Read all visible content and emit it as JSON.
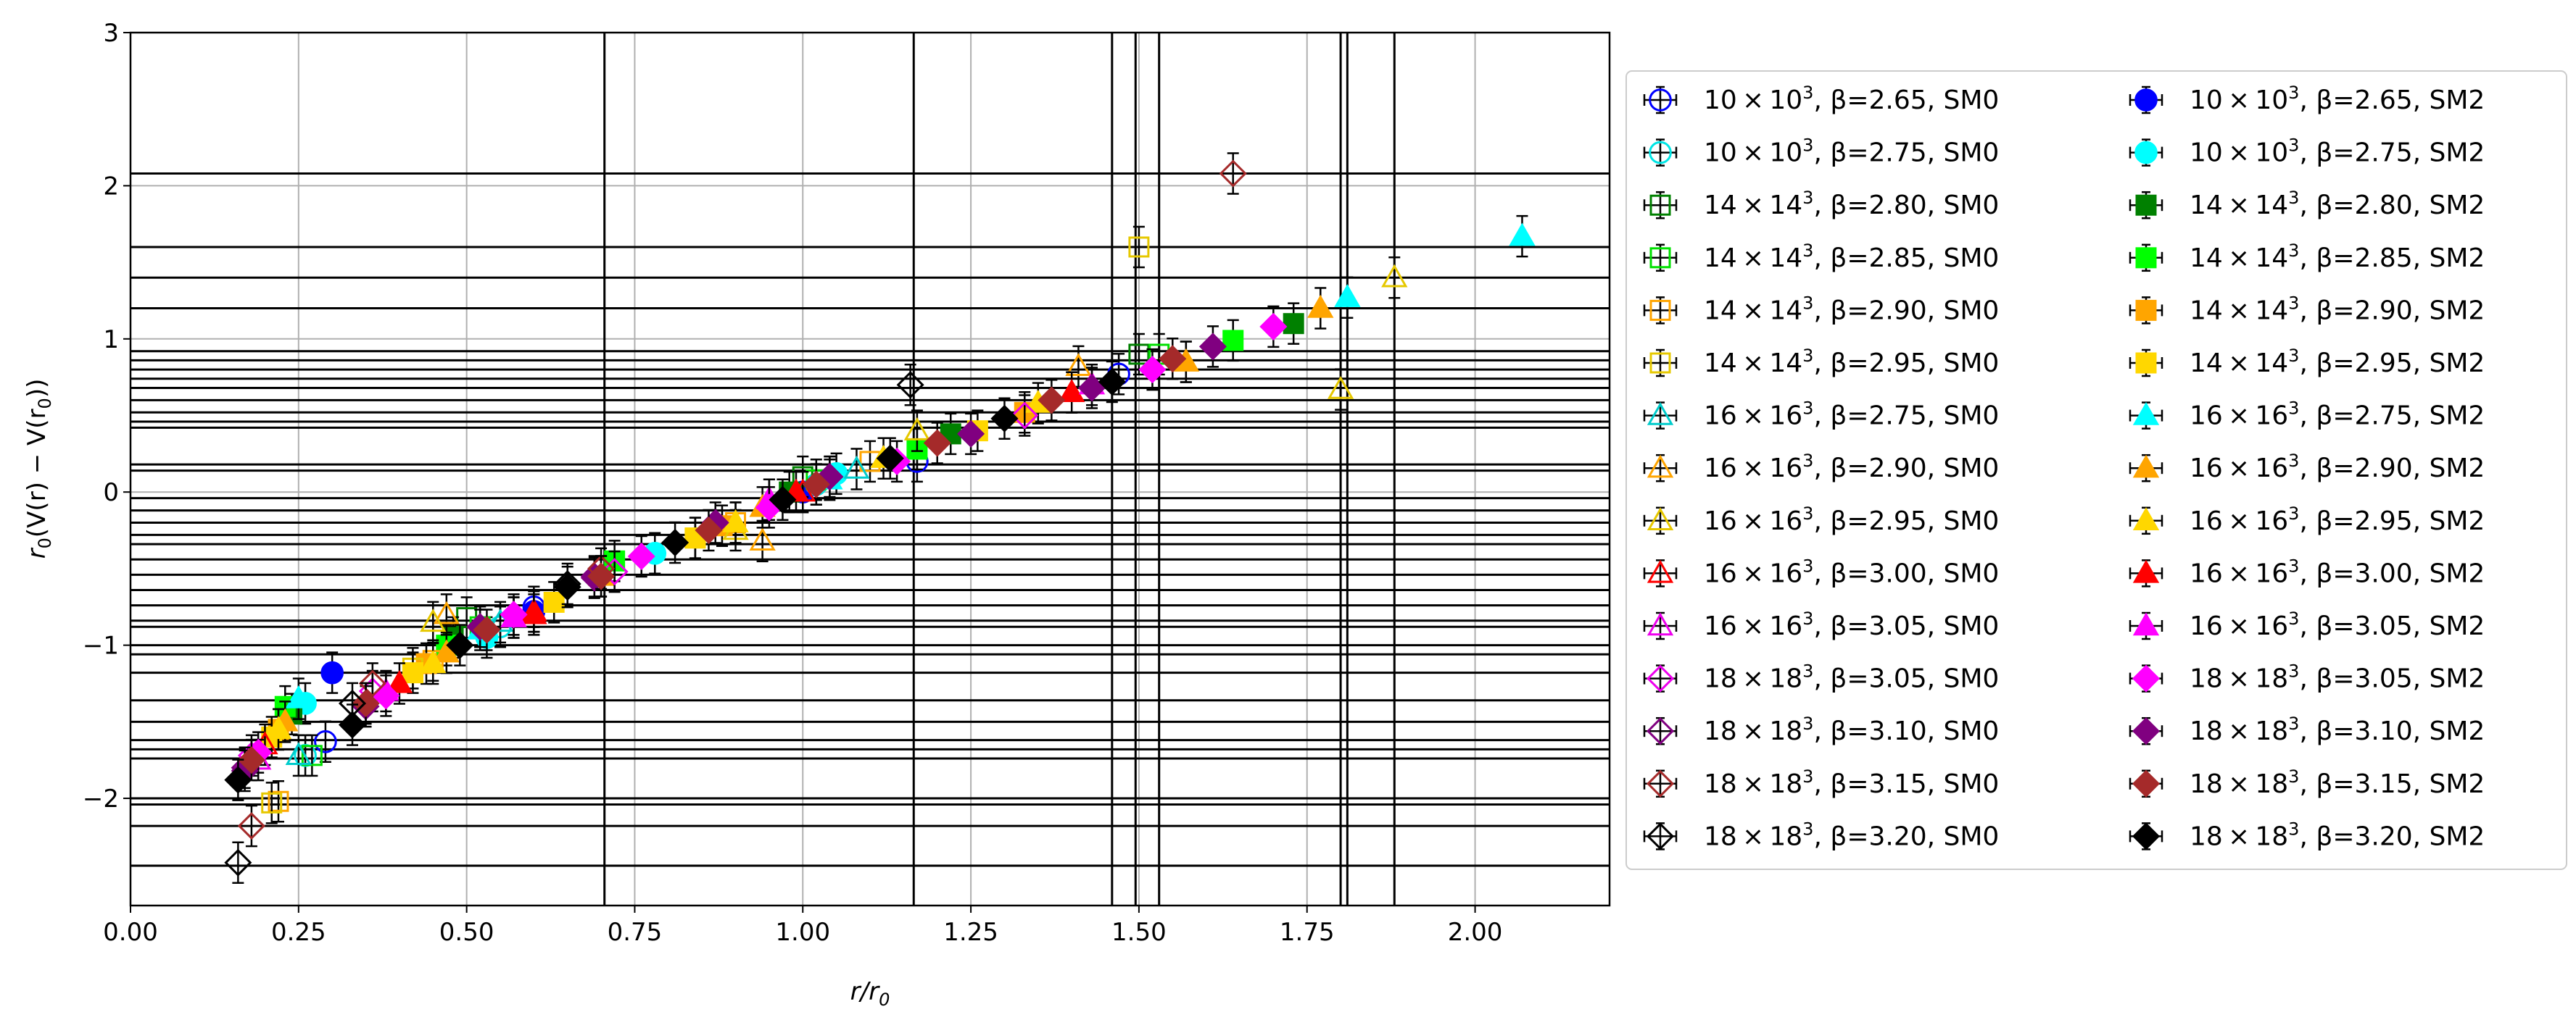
{
  "chart_data": {
    "type": "scatter",
    "xlabel": "r/r",
    "xlabel_sub": "0",
    "ylabel": {
      "a": "r",
      "b": "(V(r) − V(r",
      "c": "))",
      "sub": "0"
    },
    "xlim": [
      0,
      2.2
    ],
    "ylim": [
      -2.7,
      3
    ],
    "xticks": [
      0,
      0.25,
      0.5,
      0.75,
      1.0,
      1.25,
      1.5,
      1.75,
      2.0
    ],
    "xtick_labels": [
      "0.00",
      "0.25",
      "0.50",
      "0.75",
      "1.00",
      "1.25",
      "1.50",
      "1.75",
      "2.00"
    ],
    "yticks": [
      -2,
      -1,
      0,
      1,
      2,
      3
    ],
    "ytick_labels": [
      "−2",
      "−1",
      "0",
      "1",
      "2",
      "3"
    ],
    "grid": true,
    "legend_position": "outside-right",
    "legend_columns": 2,
    "wide_error_bars_y": [
      2.08,
      1.6,
      1.4,
      1.2,
      0.92,
      0.86,
      0.8,
      0.74,
      0.68,
      0.6,
      0.52,
      0.46,
      0.42,
      0.18,
      0.14,
      -0.04,
      -0.12,
      -0.2,
      -0.28,
      -0.34,
      -0.44,
      -0.54,
      -0.64,
      -0.74,
      -0.84,
      -0.88,
      -1.0,
      -1.06,
      -1.18,
      -1.36,
      -1.5,
      -1.62,
      -1.68,
      -1.74,
      -2.0,
      -2.04,
      -2.18,
      -2.44
    ],
    "wide_error_bars_x": [
      0.705,
      1.165,
      1.495,
      1.53,
      1.46,
      1.8,
      1.81,
      1.88
    ],
    "series": [
      {
        "name": "10×10³, β=2.65, SM0",
        "size": "10 × 10",
        "sup": "3",
        "rest": ", β=2.65, SM0",
        "color": "#0000ff",
        "marker": "circle",
        "filled": false,
        "points": [
          [
            0.29,
            -1.63
          ],
          [
            0.6,
            -0.75
          ],
          [
            1.17,
            0.2
          ],
          [
            1.47,
            0.77
          ]
        ]
      },
      {
        "name": "10×10³, β=2.65, SM2",
        "size": "10 × 10",
        "sup": "3",
        "rest": ", β=2.65, SM2",
        "color": "#0000ff",
        "marker": "circle",
        "filled": true,
        "points": [
          [
            0.3,
            -1.18
          ],
          [
            0.6,
            -0.78
          ],
          [
            1.0,
            0.0
          ]
        ]
      },
      {
        "name": "10×10³, β=2.75, SM0",
        "size": "10 × 10",
        "sup": "3",
        "rest": ", β=2.75, SM0",
        "color": "#00e5e5",
        "marker": "circle",
        "filled": false,
        "points": [
          [
            0.26,
            -1.72
          ],
          [
            0.55,
            -0.88
          ],
          [
            1.02,
            0.05
          ]
        ]
      },
      {
        "name": "10×10³, β=2.75, SM2",
        "size": "10 × 10",
        "sup": "3",
        "rest": ", β=2.75, SM2",
        "color": "#00ffff",
        "marker": "circle",
        "filled": true,
        "points": [
          [
            0.26,
            -1.38
          ],
          [
            0.53,
            -0.95
          ],
          [
            0.78,
            -0.4
          ],
          [
            1.05,
            0.12
          ]
        ]
      },
      {
        "name": "14×14³, β=2.80, SM0",
        "size": "14 × 14",
        "sup": "3",
        "rest": ", β=2.80, SM0",
        "color": "#008000",
        "marker": "square",
        "filled": false,
        "points": [
          [
            0.5,
            -0.82
          ],
          [
            1.0,
            0.1
          ],
          [
            1.5,
            0.9
          ]
        ]
      },
      {
        "name": "14×14³, β=2.80, SM2",
        "size": "14 × 14",
        "sup": "3",
        "rest": ", β=2.80, SM2",
        "color": "#008000",
        "marker": "square",
        "filled": true,
        "points": [
          [
            0.24,
            -1.45
          ],
          [
            0.48,
            -0.95
          ],
          [
            0.98,
            0.0
          ],
          [
            1.22,
            0.38
          ],
          [
            1.73,
            1.1
          ]
        ]
      },
      {
        "name": "14×14³, β=2.85, SM0",
        "size": "14 × 14",
        "sup": "3",
        "rest": ", β=2.85, SM0",
        "color": "#00e000",
        "marker": "square",
        "filled": false,
        "points": [
          [
            0.27,
            -1.72
          ],
          [
            0.52,
            -0.88
          ],
          [
            1.02,
            0.08
          ],
          [
            1.53,
            0.9
          ]
        ]
      },
      {
        "name": "14×14³, β=2.85, SM2",
        "size": "14 × 14",
        "sup": "3",
        "rest": ", β=2.85, SM2",
        "color": "#00ff00",
        "marker": "square",
        "filled": true,
        "points": [
          [
            0.23,
            -1.4
          ],
          [
            0.47,
            -1.0
          ],
          [
            0.72,
            -0.45
          ],
          [
            1.17,
            0.28
          ],
          [
            1.64,
            0.99
          ]
        ]
      },
      {
        "name": "14×14³, β=2.90, SM0",
        "size": "14 × 14",
        "sup": "3",
        "rest": ", β=2.90, SM0",
        "color": "#ffa500",
        "marker": "square",
        "filled": false,
        "points": [
          [
            0.22,
            -2.02
          ],
          [
            0.45,
            -1.1
          ],
          [
            0.9,
            -0.2
          ],
          [
            1.1,
            0.2
          ]
        ]
      },
      {
        "name": "14×14³, β=2.90, SM2",
        "size": "14 × 14",
        "sup": "3",
        "rest": ", β=2.90, SM2",
        "color": "#ffa500",
        "marker": "square",
        "filled": true,
        "points": [
          [
            0.22,
            -1.55
          ],
          [
            0.44,
            -1.12
          ],
          [
            0.88,
            -0.22
          ],
          [
            1.33,
            0.52
          ]
        ]
      },
      {
        "name": "14×14³, β=2.95, SM0",
        "size": "14 × 14",
        "sup": "3",
        "rest": ", β=2.95, SM0",
        "color": "#e6c800",
        "marker": "square",
        "filled": false,
        "points": [
          [
            0.21,
            -2.03
          ],
          [
            0.42,
            -1.15
          ],
          [
            0.84,
            -0.3
          ],
          [
            1.5,
            1.6
          ]
        ]
      },
      {
        "name": "14×14³, β=2.95, SM2",
        "size": "14 × 14",
        "sup": "3",
        "rest": ", β=2.95, SM2",
        "color": "#ffd700",
        "marker": "square",
        "filled": true,
        "points": [
          [
            0.21,
            -1.6
          ],
          [
            0.42,
            -1.18
          ],
          [
            0.63,
            -0.72
          ],
          [
            0.84,
            -0.3
          ],
          [
            1.26,
            0.4
          ]
        ]
      },
      {
        "name": "16×16³, β=2.75, SM0",
        "size": "16 × 16",
        "sup": "3",
        "rest": ", β=2.75, SM0",
        "color": "#00cccc",
        "marker": "triangle",
        "filled": false,
        "points": [
          [
            0.25,
            -1.72
          ],
          [
            0.55,
            -0.85
          ],
          [
            1.08,
            0.15
          ]
        ]
      },
      {
        "name": "16×16³, β=2.75, SM2",
        "size": "16 × 16",
        "sup": "3",
        "rest": ", β=2.75, SM2",
        "color": "#00ffff",
        "marker": "triangle",
        "filled": true,
        "points": [
          [
            0.25,
            -1.35
          ],
          [
            0.52,
            -0.9
          ],
          [
            1.04,
            0.08
          ],
          [
            1.81,
            1.27
          ],
          [
            2.07,
            1.67
          ]
        ]
      },
      {
        "name": "16×16³, β=2.90, SM0",
        "size": "16 × 16",
        "sup": "3",
        "rest": ", β=2.90, SM0",
        "color": "#ffa500",
        "marker": "triangle",
        "filled": false,
        "points": [
          [
            0.47,
            -0.8
          ],
          [
            0.94,
            -0.32
          ],
          [
            1.41,
            0.82
          ],
          [
            1.57,
            0.85
          ]
        ]
      },
      {
        "name": "16×16³, β=2.90, SM2",
        "size": "16 × 16",
        "sup": "3",
        "rest": ", β=2.90, SM2",
        "color": "#ffa500",
        "marker": "triangle",
        "filled": true,
        "points": [
          [
            0.23,
            -1.5
          ],
          [
            0.47,
            -1.05
          ],
          [
            0.7,
            -0.55
          ],
          [
            0.94,
            -0.1
          ],
          [
            1.57,
            0.85
          ],
          [
            1.77,
            1.2
          ]
        ]
      },
      {
        "name": "16×16³, β=2.95, SM0",
        "size": "16 × 16",
        "sup": "3",
        "rest": ", β=2.95, SM0",
        "color": "#e6c800",
        "marker": "triangle",
        "filled": false,
        "points": [
          [
            0.45,
            -0.85
          ],
          [
            0.9,
            -0.25
          ],
          [
            1.17,
            0.4
          ],
          [
            1.8,
            0.67
          ],
          [
            1.88,
            1.4
          ]
        ]
      },
      {
        "name": "16×16³, β=2.95, SM2",
        "size": "16 × 16",
        "sup": "3",
        "rest": ", β=2.95, SM2",
        "color": "#ffd700",
        "marker": "triangle",
        "filled": true,
        "points": [
          [
            0.22,
            -1.55
          ],
          [
            0.45,
            -1.12
          ],
          [
            0.9,
            -0.2
          ],
          [
            1.12,
            0.22
          ],
          [
            1.35,
            0.58
          ]
        ]
      },
      {
        "name": "16×16³, β=3.00, SM0",
        "size": "16 × 16",
        "sup": "3",
        "rest": ", β=3.00, SM0",
        "color": "#ff0000",
        "marker": "triangle",
        "filled": false,
        "points": [
          [
            0.2,
            -1.65
          ],
          [
            0.6,
            -0.78
          ],
          [
            1.0,
            0.0
          ]
        ]
      },
      {
        "name": "16×16³, β=3.00, SM2",
        "size": "16 × 16",
        "sup": "3",
        "rest": ", β=3.00, SM2",
        "color": "#ff0000",
        "marker": "triangle",
        "filled": true,
        "points": [
          [
            0.4,
            -1.25
          ],
          [
            0.6,
            -0.8
          ],
          [
            0.99,
            0.0
          ],
          [
            1.4,
            0.65
          ]
        ]
      },
      {
        "name": "16×16³, β=3.05, SM0",
        "size": "16 × 16",
        "sup": "3",
        "rest": ", β=3.05, SM0",
        "color": "#ee00ee",
        "marker": "triangle",
        "filled": false,
        "points": [
          [
            0.19,
            -1.75
          ],
          [
            0.57,
            -0.82
          ],
          [
            0.95,
            -0.05
          ]
        ]
      },
      {
        "name": "16×16³, β=3.05, SM2",
        "size": "16 × 16",
        "sup": "3",
        "rest": ", β=3.05, SM2",
        "color": "#ff00ff",
        "marker": "triangle",
        "filled": true,
        "points": [
          [
            0.38,
            -1.3
          ],
          [
            0.57,
            -0.82
          ],
          [
            0.95,
            -0.05
          ],
          [
            1.43,
            0.7
          ]
        ]
      },
      {
        "name": "18×18³, β=3.05, SM0",
        "size": "18 × 18",
        "sup": "3",
        "rest": ", β=3.05, SM0",
        "color": "#ee00ee",
        "marker": "diamond",
        "filled": false,
        "points": [
          [
            0.18,
            -1.72
          ],
          [
            0.36,
            -1.3
          ],
          [
            0.72,
            -0.52
          ],
          [
            1.33,
            0.5
          ]
        ]
      },
      {
        "name": "18×18³, β=3.05, SM2",
        "size": "18 × 18",
        "sup": "3",
        "rest": ", β=3.05, SM2",
        "color": "#ff00ff",
        "marker": "diamond",
        "filled": true,
        "points": [
          [
            0.19,
            -1.7
          ],
          [
            0.38,
            -1.33
          ],
          [
            0.57,
            -0.8
          ],
          [
            0.76,
            -0.42
          ],
          [
            0.95,
            -0.1
          ],
          [
            1.14,
            0.2
          ],
          [
            1.52,
            0.8
          ],
          [
            1.7,
            1.08
          ]
        ]
      },
      {
        "name": "18×18³, β=3.10, SM0",
        "size": "18 × 18",
        "sup": "3",
        "rest": ", β=3.10, SM0",
        "color": "#800080",
        "marker": "diamond",
        "filled": false,
        "points": [
          [
            0.17,
            -1.8
          ],
          [
            0.35,
            -1.38
          ],
          [
            0.69,
            -0.55
          ],
          [
            1.04,
            0.1
          ]
        ]
      },
      {
        "name": "18×18³, β=3.10, SM2",
        "size": "18 × 18",
        "sup": "3",
        "rest": ", β=3.10, SM2",
        "color": "#800080",
        "marker": "diamond",
        "filled": true,
        "points": [
          [
            0.17,
            -1.82
          ],
          [
            0.35,
            -1.4
          ],
          [
            0.52,
            -0.88
          ],
          [
            0.69,
            -0.56
          ],
          [
            0.87,
            -0.2
          ],
          [
            1.04,
            0.1
          ],
          [
            1.25,
            0.38
          ],
          [
            1.43,
            0.68
          ],
          [
            1.61,
            0.95
          ]
        ]
      },
      {
        "name": "18×18³, β=3.15, SM0",
        "size": "18 × 18",
        "sup": "3",
        "rest": ", β=3.15, SM0",
        "color": "#a52a2a",
        "marker": "diamond",
        "filled": false,
        "points": [
          [
            0.18,
            -2.18
          ],
          [
            0.36,
            -1.25
          ],
          [
            0.7,
            -0.5
          ],
          [
            1.64,
            2.08
          ]
        ]
      },
      {
        "name": "18×18³, β=3.15, SM2",
        "size": "18 × 18",
        "sup": "3",
        "rest": ", β=3.15, SM2",
        "color": "#a52a2a",
        "marker": "diamond",
        "filled": true,
        "points": [
          [
            0.18,
            -1.75
          ],
          [
            0.35,
            -1.38
          ],
          [
            0.53,
            -0.9
          ],
          [
            0.7,
            -0.55
          ],
          [
            0.86,
            -0.25
          ],
          [
            1.02,
            0.05
          ],
          [
            1.2,
            0.32
          ],
          [
            1.37,
            0.6
          ],
          [
            1.55,
            0.87
          ]
        ]
      },
      {
        "name": "18×18³, β=3.20, SM0",
        "size": "18 × 18",
        "sup": "3",
        "rest": ", β=3.20, SM0",
        "color": "#000000",
        "marker": "diamond",
        "filled": false,
        "points": [
          [
            0.16,
            -2.42
          ],
          [
            0.33,
            -1.38
          ],
          [
            0.65,
            -0.6
          ],
          [
            1.16,
            0.7
          ]
        ]
      },
      {
        "name": "18×18³, β=3.20, SM2",
        "size": "18 × 18",
        "sup": "3",
        "rest": ", β=3.20, SM2",
        "color": "#000000",
        "marker": "diamond",
        "filled": true,
        "points": [
          [
            0.16,
            -1.88
          ],
          [
            0.33,
            -1.52
          ],
          [
            0.49,
            -1.0
          ],
          [
            0.65,
            -0.62
          ],
          [
            0.81,
            -0.33
          ],
          [
            0.97,
            -0.05
          ],
          [
            1.13,
            0.22
          ],
          [
            1.3,
            0.48
          ],
          [
            1.46,
            0.72
          ]
        ]
      }
    ]
  }
}
